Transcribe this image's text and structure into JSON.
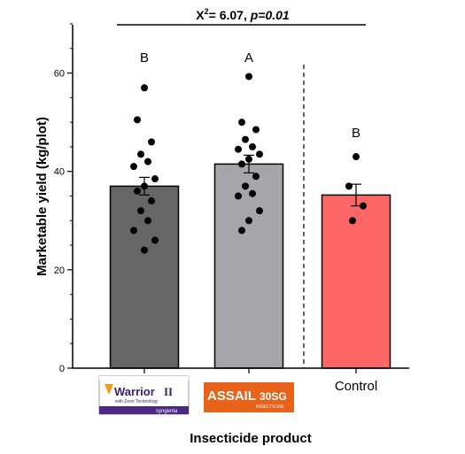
{
  "chart_data": {
    "type": "bar",
    "categories": [
      "Warrior II",
      "Assail 30SG",
      "Control"
    ],
    "category_label_text": [
      "",
      "",
      "Control"
    ],
    "values": [
      37.0,
      41.5,
      35.2
    ],
    "sem": [
      1.8,
      1.8,
      2.2
    ],
    "bar_colors": [
      "#666666",
      "#a6a6aa",
      "#ff6666"
    ],
    "group_letters": [
      "B",
      "A",
      "B"
    ],
    "points": [
      [
        57,
        50.5,
        46,
        43.5,
        42,
        41,
        38.5,
        37,
        36,
        34,
        32,
        30,
        28,
        26,
        24
      ],
      [
        59.3,
        50,
        48.5,
        46.5,
        45,
        44.5,
        43.5,
        42.5,
        41.5,
        39,
        37,
        35.5,
        35,
        32,
        30,
        28
      ],
      [
        43,
        37,
        33,
        30
      ]
    ],
    "xlabel": "Insecticide product",
    "ylabel": "Marketable yield (kg/plot)",
    "ylim": [
      0,
      70
    ],
    "yticks": [
      0,
      20,
      40,
      60
    ],
    "stat": {
      "chi": "X",
      "sup": "2",
      "value": "= 6.07, ",
      "p": "p=0.01"
    },
    "logo_warrior": {
      "brand": "Warrior",
      "numeral": "II",
      "tagline": "with Zeon Technology",
      "maker": "syngenta"
    },
    "logo_assail": {
      "brand": "ASSAIL",
      "suffix": "30SG",
      "tagline": "INSECTICIDE"
    },
    "grid": false,
    "legend": "none"
  }
}
